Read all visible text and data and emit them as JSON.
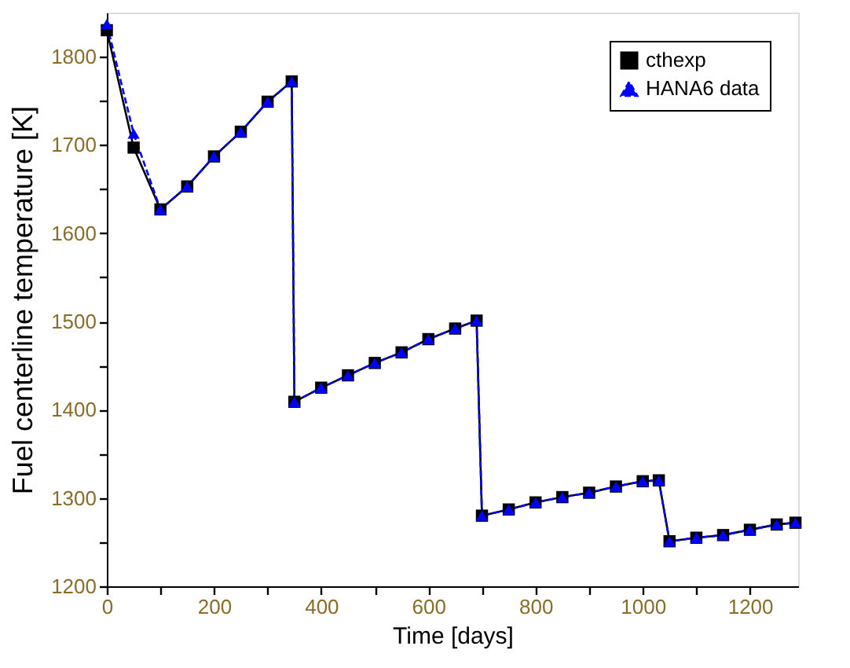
{
  "chart_data": {
    "type": "line",
    "xlabel": "Time [days]",
    "ylabel": "Fuel centerline temperature [K]",
    "x": [
      0,
      50,
      100,
      150,
      200,
      250,
      300,
      345,
      350,
      400,
      450,
      500,
      550,
      600,
      650,
      690,
      700,
      750,
      800,
      850,
      900,
      950,
      1000,
      1030,
      1050,
      1100,
      1150,
      1200,
      1250,
      1285
    ],
    "series": [
      {
        "name": "cthexp",
        "color": "#000000",
        "marker": "square",
        "line_style": "solid",
        "values": [
          1830,
          1697,
          1627,
          1653,
          1687,
          1715,
          1749,
          1772,
          1409,
          1425,
          1439,
          1453,
          1465,
          1480,
          1492,
          1501,
          1280,
          1287,
          1295,
          1301,
          1306,
          1313,
          1319,
          1320,
          1251,
          1255,
          1258,
          1264,
          1270,
          1272
        ]
      },
      {
        "name": "HANA6 data",
        "color": "#0000ff",
        "marker": "triangle",
        "line_style": "dashed",
        "values": [
          1837,
          1713,
          1627,
          1653,
          1687,
          1715,
          1749,
          1772,
          1409,
          1425,
          1439,
          1453,
          1465,
          1480,
          1492,
          1501,
          1280,
          1287,
          1295,
          1301,
          1306,
          1313,
          1319,
          1320,
          1251,
          1255,
          1258,
          1264,
          1270,
          1272
        ]
      }
    ],
    "xlim": [
      0,
      1290
    ],
    "ylim": [
      1200,
      1850
    ],
    "xticks": [
      0,
      {
        "value": 100,
        "label": null
      },
      200,
      {
        "value": 300,
        "label": null
      },
      400,
      {
        "value": 500,
        "label": null
      },
      600,
      {
        "value": 700,
        "label": null
      },
      800,
      {
        "value": 900,
        "label": null
      },
      1000,
      {
        "value": 1100,
        "label": null
      },
      1200
    ],
    "yticks": [
      1200,
      {
        "value": 1250,
        "label": null
      },
      1300,
      {
        "value": 1350,
        "label": null
      },
      1400,
      {
        "value": 1450,
        "label": null
      },
      1500,
      {
        "value": 1550,
        "label": null
      },
      1600,
      {
        "value": 1650,
        "label": null
      },
      1700,
      {
        "value": 1750,
        "label": null
      },
      1800
    ],
    "grid": false,
    "legend": "top right"
  }
}
